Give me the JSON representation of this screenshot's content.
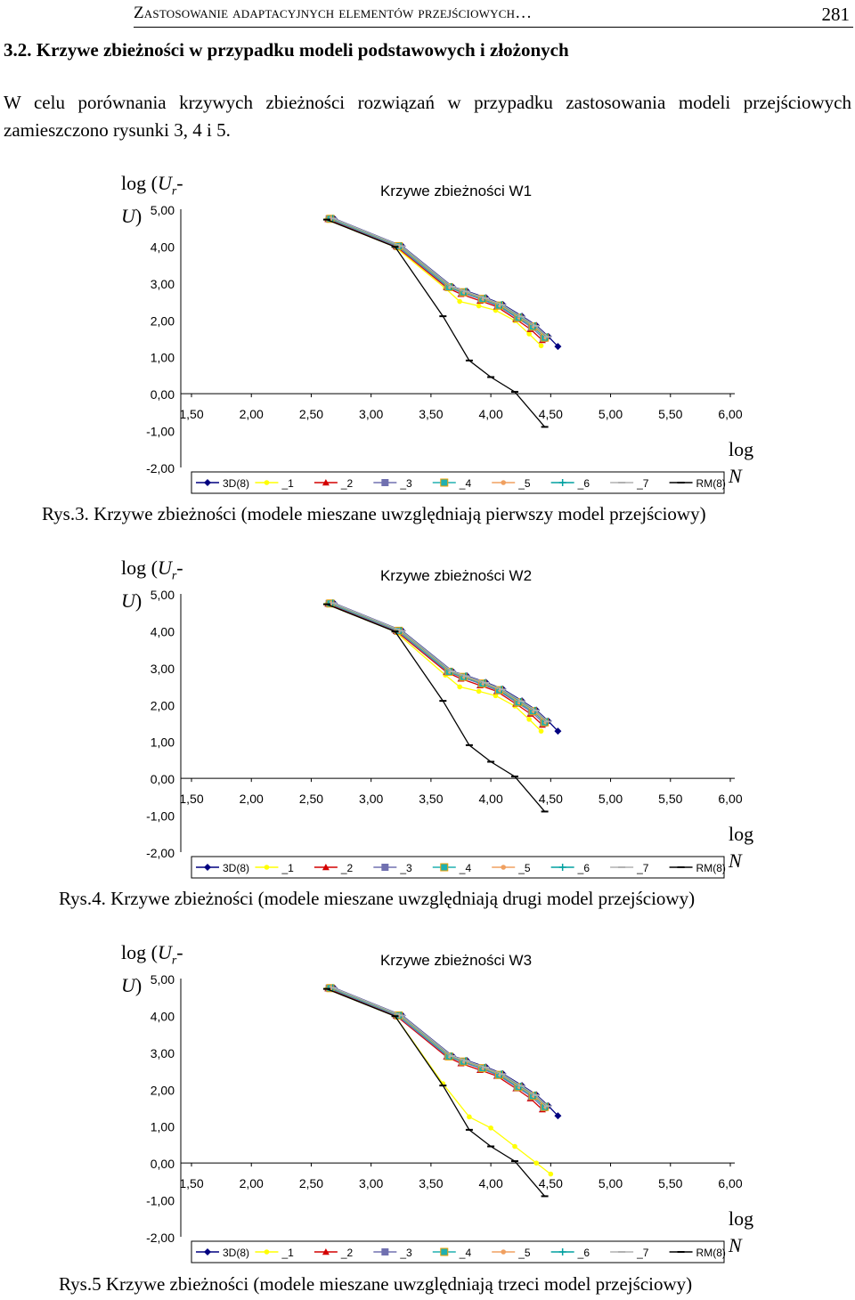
{
  "header": {
    "running_title": "Zastosowanie adaptacyjnych elementów przejściowych…",
    "page_number": "281"
  },
  "section_heading": "3.2. Krzywe zbieżności w przypadku modeli podstawowych i złożonych",
  "paragraph": "W celu porównania krzywych zbieżności rozwiązań w przypadku zastosowania modeli przejściowych zamieszczono rysunki 3, 4 i 5.",
  "axis_labels": {
    "y_prefix": "log (",
    "y_var": "U",
    "y_sub": "r",
    "y_dash": "-",
    "y_var2": "U",
    "y_suffix": ")",
    "x_prefix": "log",
    "x_var": "N"
  },
  "colors": {
    "3D(8)": "#000080",
    "_1": "#ffff00",
    "_2": "#d40000",
    "_3": "#7070b0",
    "_4": "#20b0b0",
    "_5": "#f0a060",
    "_6": "#00a0a0",
    "_7": "#b0b0b0",
    "RM(8)": "#000000"
  },
  "figures": [
    {
      "caption": "Rys.3. Krzywe zbieżności (modele mieszane uwzględniają pierwszy model przejściowy)",
      "chart_data": {
        "type": "line",
        "title": "Krzywe zbieżności W1",
        "ylim": [
          -2,
          5
        ],
        "xlim": [
          1.5,
          6
        ],
        "y_ticks": [
          "5,00",
          "4,00",
          "3,00",
          "2,00",
          "1,00",
          "0,00",
          "-1,00",
          "-2,00"
        ],
        "x_ticks": [
          "1,50",
          "2,00",
          "2,50",
          "3,00",
          "3,50",
          "4,00",
          "4,50",
          "5,00",
          "5,50",
          "6,00"
        ],
        "legend": [
          "3D(8)",
          "_1",
          "_2",
          "_3",
          "_4",
          "_5",
          "_6",
          "_7",
          "RM(8)"
        ],
        "series": [
          {
            "name": "3D(8)",
            "x": [
              2.69,
              3.26,
              3.68,
              3.8,
              3.96,
              4.1,
              4.26,
              4.38,
              4.48,
              4.56
            ],
            "y": [
              4.75,
              4.0,
              2.9,
              2.78,
              2.6,
              2.42,
              2.1,
              1.85,
              1.55,
              1.28
            ]
          },
          {
            "name": "_1",
            "x": [
              2.63,
              3.2,
              3.62,
              3.74,
              3.9,
              4.04,
              4.2,
              4.32,
              4.42
            ],
            "y": [
              4.72,
              3.98,
              2.86,
              2.5,
              2.38,
              2.26,
              1.98,
              1.62,
              1.3
            ]
          },
          {
            "name": "_2",
            "x": [
              2.64,
              3.21,
              3.63,
              3.75,
              3.91,
              4.05,
              4.21,
              4.33,
              4.43
            ],
            "y": [
              4.73,
              3.99,
              2.88,
              2.7,
              2.52,
              2.36,
              2.02,
              1.75,
              1.45
            ]
          },
          {
            "name": "_3",
            "x": [
              2.65,
              3.22,
              3.64,
              3.76,
              3.92,
              4.06,
              4.22,
              4.34,
              4.44
            ],
            "y": [
              4.74,
              3.99,
              2.89,
              2.74,
              2.56,
              2.38,
              2.05,
              1.8,
              1.5
            ]
          },
          {
            "name": "_4",
            "x": [
              2.66,
              3.23,
              3.65,
              3.77,
              3.93,
              4.07,
              4.23,
              4.35,
              4.45
            ],
            "y": [
              4.74,
              4.0,
              2.89,
              2.75,
              2.57,
              2.39,
              2.06,
              1.82,
              1.52
            ]
          },
          {
            "name": "_5",
            "x": [
              2.67,
              3.24,
              3.66,
              3.78,
              3.94,
              4.08,
              4.24,
              4.36,
              4.46
            ],
            "y": [
              4.75,
              4.0,
              2.9,
              2.76,
              2.58,
              2.4,
              2.07,
              1.83,
              1.53
            ]
          },
          {
            "name": "_6",
            "x": [
              2.68,
              3.25,
              3.67,
              3.79,
              3.95,
              4.09,
              4.25,
              4.37,
              4.47
            ],
            "y": [
              4.75,
              4.0,
              2.9,
              2.77,
              2.59,
              2.41,
              2.08,
              1.84,
              1.54
            ]
          },
          {
            "name": "_7",
            "x": [
              2.685,
              3.255,
              3.675,
              3.795,
              3.955,
              4.095,
              4.255,
              4.375,
              4.475
            ],
            "y": [
              4.75,
              4.0,
              2.9,
              2.77,
              2.59,
              2.41,
              2.09,
              1.84,
              1.54
            ]
          },
          {
            "name": "RM(8)",
            "x": [
              2.63,
              3.2,
              3.6,
              3.82,
              4.0,
              4.2,
              4.45
            ],
            "y": [
              4.72,
              3.98,
              2.1,
              0.9,
              0.45,
              0.05,
              -0.9
            ]
          }
        ]
      }
    },
    {
      "caption": "Rys.4. Krzywe zbieżności (modele mieszane uwzględniają drugi model przejściowy)",
      "chart_data": {
        "type": "line",
        "title": "Krzywe zbieżności W2",
        "ylim": [
          -2,
          5
        ],
        "xlim": [
          1.5,
          6
        ],
        "y_ticks": [
          "5,00",
          "4,00",
          "3,00",
          "2,00",
          "1,00",
          "0,00",
          "-1,00",
          "-2,00"
        ],
        "x_ticks": [
          "1,50",
          "2,00",
          "2,50",
          "3,00",
          "3,50",
          "4,00",
          "4,50",
          "5,00",
          "5,50",
          "6,00"
        ],
        "legend": [
          "3D(8)",
          "_1",
          "_2",
          "_3",
          "_4",
          "_5",
          "_6",
          "_7",
          "RM(8)"
        ],
        "series": [
          {
            "name": "3D(8)",
            "x": [
              2.69,
              3.26,
              3.68,
              3.8,
              3.96,
              4.1,
              4.26,
              4.38,
              4.48,
              4.56
            ],
            "y": [
              4.75,
              4.0,
              2.9,
              2.78,
              2.6,
              2.42,
              2.1,
              1.85,
              1.55,
              1.28
            ]
          },
          {
            "name": "_1",
            "x": [
              2.63,
              3.2,
              3.62,
              3.74,
              3.9,
              4.04,
              4.2,
              4.32,
              4.42
            ],
            "y": [
              4.72,
              3.98,
              2.8,
              2.48,
              2.36,
              2.24,
              1.96,
              1.6,
              1.28
            ]
          },
          {
            "name": "_2",
            "x": [
              2.64,
              3.21,
              3.63,
              3.75,
              3.91,
              4.05,
              4.21,
              4.33,
              4.43
            ],
            "y": [
              4.73,
              3.99,
              2.88,
              2.7,
              2.52,
              2.36,
              2.02,
              1.75,
              1.45
            ]
          },
          {
            "name": "_3",
            "x": [
              2.65,
              3.22,
              3.64,
              3.76,
              3.92,
              4.06,
              4.22,
              4.34,
              4.44
            ],
            "y": [
              4.74,
              3.99,
              2.89,
              2.74,
              2.56,
              2.38,
              2.05,
              1.8,
              1.5
            ]
          },
          {
            "name": "_4",
            "x": [
              2.66,
              3.23,
              3.65,
              3.77,
              3.93,
              4.07,
              4.23,
              4.35,
              4.45
            ],
            "y": [
              4.74,
              4.0,
              2.89,
              2.75,
              2.57,
              2.39,
              2.06,
              1.82,
              1.52
            ]
          },
          {
            "name": "_5",
            "x": [
              2.67,
              3.24,
              3.66,
              3.78,
              3.94,
              4.08,
              4.24,
              4.36,
              4.46
            ],
            "y": [
              4.75,
              4.0,
              2.9,
              2.76,
              2.58,
              2.4,
              2.07,
              1.83,
              1.53
            ]
          },
          {
            "name": "_6",
            "x": [
              2.68,
              3.25,
              3.67,
              3.79,
              3.95,
              4.09,
              4.25,
              4.37,
              4.47
            ],
            "y": [
              4.75,
              4.0,
              2.9,
              2.77,
              2.59,
              2.41,
              2.08,
              1.84,
              1.54
            ]
          },
          {
            "name": "_7",
            "x": [
              2.685,
              3.255,
              3.675,
              3.795,
              3.955,
              4.095,
              4.255,
              4.375,
              4.475
            ],
            "y": [
              4.75,
              4.0,
              2.9,
              2.77,
              2.59,
              2.41,
              2.09,
              1.84,
              1.54
            ]
          },
          {
            "name": "RM(8)",
            "x": [
              2.63,
              3.2,
              3.6,
              3.82,
              4.0,
              4.2,
              4.45
            ],
            "y": [
              4.72,
              3.98,
              2.1,
              0.9,
              0.45,
              0.05,
              -0.9
            ]
          }
        ]
      }
    },
    {
      "caption": "Rys.5 Krzywe zbieżności (modele mieszane uwzględniają trzeci model przejściowy)",
      "chart_data": {
        "type": "line",
        "title": "Krzywe zbieżności W3",
        "ylim": [
          -2,
          5
        ],
        "xlim": [
          1.5,
          6
        ],
        "y_ticks": [
          "5,00",
          "4,00",
          "3,00",
          "2,00",
          "1,00",
          "0,00",
          "-1,00",
          "-2,00"
        ],
        "x_ticks": [
          "1,50",
          "2,00",
          "2,50",
          "3,00",
          "3,50",
          "4,00",
          "4,50",
          "5,00",
          "5,50",
          "6,00"
        ],
        "legend": [
          "3D(8)",
          "_1",
          "_2",
          "_3",
          "_4",
          "_5",
          "_6",
          "_7",
          "RM(8)"
        ],
        "series": [
          {
            "name": "3D(8)",
            "x": [
              2.69,
              3.26,
              3.68,
              3.8,
              3.96,
              4.1,
              4.26,
              4.38,
              4.48,
              4.56
            ],
            "y": [
              4.75,
              4.0,
              2.9,
              2.78,
              2.6,
              2.42,
              2.1,
              1.85,
              1.55,
              1.28
            ]
          },
          {
            "name": "_1",
            "x": [
              2.63,
              3.2,
              3.6,
              3.82,
              4.0,
              4.2,
              4.38,
              4.5
            ],
            "y": [
              4.72,
              3.98,
              2.15,
              1.25,
              0.95,
              0.45,
              0.0,
              -0.3
            ]
          },
          {
            "name": "_2",
            "x": [
              2.64,
              3.21,
              3.63,
              3.75,
              3.91,
              4.05,
              4.21,
              4.33,
              4.43
            ],
            "y": [
              4.73,
              3.99,
              2.88,
              2.7,
              2.52,
              2.36,
              2.02,
              1.75,
              1.45
            ]
          },
          {
            "name": "_3",
            "x": [
              2.65,
              3.22,
              3.64,
              3.76,
              3.92,
              4.06,
              4.22,
              4.34,
              4.44
            ],
            "y": [
              4.74,
              3.99,
              2.89,
              2.74,
              2.56,
              2.38,
              2.05,
              1.8,
              1.5
            ]
          },
          {
            "name": "_4",
            "x": [
              2.66,
              3.23,
              3.65,
              3.77,
              3.93,
              4.07,
              4.23,
              4.35,
              4.45
            ],
            "y": [
              4.74,
              4.0,
              2.89,
              2.75,
              2.57,
              2.39,
              2.06,
              1.82,
              1.52
            ]
          },
          {
            "name": "_5",
            "x": [
              2.67,
              3.24,
              3.66,
              3.78,
              3.94,
              4.08,
              4.24,
              4.36,
              4.46
            ],
            "y": [
              4.75,
              4.0,
              2.9,
              2.76,
              2.58,
              2.4,
              2.07,
              1.83,
              1.53
            ]
          },
          {
            "name": "_6",
            "x": [
              2.68,
              3.25,
              3.67,
              3.79,
              3.95,
              4.09,
              4.25,
              4.37,
              4.47
            ],
            "y": [
              4.75,
              4.0,
              2.9,
              2.77,
              2.59,
              2.41,
              2.08,
              1.84,
              1.54
            ]
          },
          {
            "name": "_7",
            "x": [
              2.685,
              3.255,
              3.675,
              3.795,
              3.955,
              4.095,
              4.255,
              4.375,
              4.475
            ],
            "y": [
              4.75,
              4.0,
              2.9,
              2.77,
              2.59,
              2.41,
              2.09,
              1.84,
              1.54
            ]
          },
          {
            "name": "RM(8)",
            "x": [
              2.63,
              3.2,
              3.6,
              3.82,
              4.0,
              4.2,
              4.45
            ],
            "y": [
              4.72,
              3.98,
              2.1,
              0.9,
              0.45,
              0.05,
              -0.9
            ]
          }
        ]
      }
    }
  ]
}
